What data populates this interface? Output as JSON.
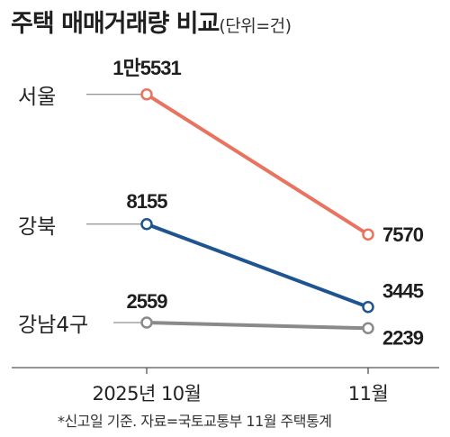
{
  "chart_data": {
    "type": "line",
    "title": "주택 매매거래량 비교",
    "unit_note": "(단위=건)",
    "categories": [
      "2025년 10월",
      "11월"
    ],
    "series": [
      {
        "name": "서울",
        "values": [
          15531,
          7570
        ],
        "labels": [
          "1만5531",
          "7570"
        ],
        "color": "#e9735f"
      },
      {
        "name": "강북",
        "values": [
          8155,
          3445
        ],
        "labels": [
          "8155",
          "3445"
        ],
        "color": "#1e5590"
      },
      {
        "name": "강남4구",
        "values": [
          2559,
          2239
        ],
        "labels": [
          "2559",
          "2239"
        ],
        "color": "#8a8a8a"
      }
    ],
    "ylim": [
      0,
      16800
    ],
    "grid": false,
    "source": "*신고일 기준. 자료=국토교통부 11월 주택통계"
  }
}
